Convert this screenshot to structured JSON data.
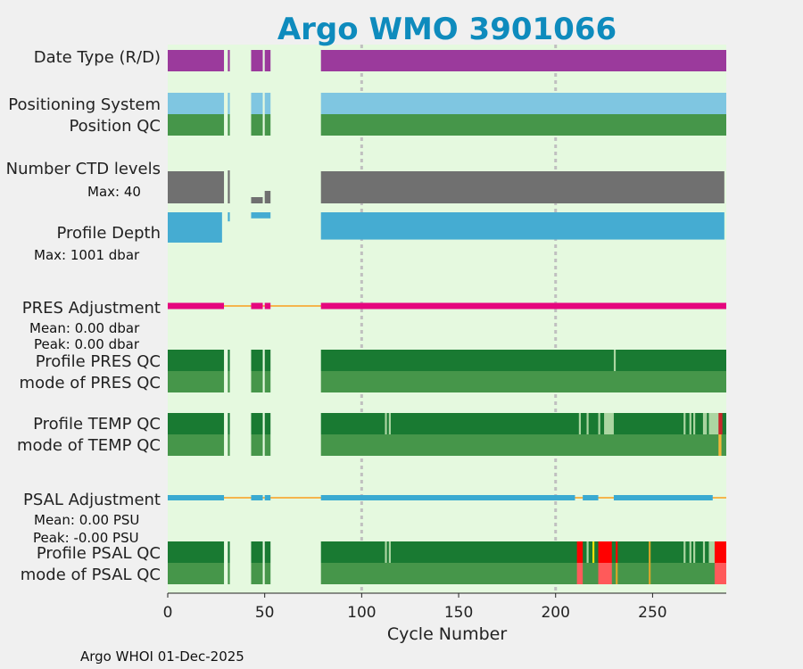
{
  "chart_data": {
    "type": "bar",
    "title": "Argo WMO 3901066",
    "xlabel": "Cycle Number",
    "xlim": [
      0,
      288
    ],
    "xticks": [
      0,
      50,
      100,
      150,
      200,
      250
    ],
    "grid_x": [
      100,
      200
    ],
    "footer": "Argo WHOI 01-Dec-2025",
    "gaps": [
      [
        29,
        31
      ],
      [
        32,
        43
      ],
      [
        49,
        50
      ],
      [
        53,
        79
      ]
    ],
    "ctd_segments": [
      {
        "x": [
          0,
          29
        ],
        "levels": 36
      },
      {
        "x": [
          31,
          32
        ],
        "levels": 37
      },
      {
        "x": [
          43,
          49
        ],
        "levels": 7
      },
      {
        "x": [
          50,
          53
        ],
        "levels": 14
      },
      {
        "x": [
          79,
          287
        ],
        "levels": 36
      }
    ],
    "max_ctd_levels": 40,
    "depth_segments": [
      {
        "x": [
          0,
          28
        ],
        "depth_dbar": 1000
      },
      {
        "x": [
          31,
          32
        ],
        "depth_dbar": 300
      },
      {
        "x": [
          43,
          53
        ],
        "depth_dbar": 200
      },
      {
        "x": [
          79,
          287
        ],
        "depth_dbar": 900
      }
    ],
    "max_depth_dbar": 1001,
    "colors": {
      "plot_bg": "#e5f9df",
      "date_type": "#9b3a9c",
      "positioning": "#7fc6e1",
      "qc_good": "#46964a",
      "qc_dark": "#197a32",
      "qc_probably_good": "#acd6a2",
      "qc_bad": "#ff0000",
      "qc_probably_bad": "#ff5a5a",
      "qc_yellow": "#f2e20c",
      "adjust_line": "#f5b54d",
      "pres_adjust": "#e5077e",
      "psal_adjust": "#3aaad1",
      "ctd_bars": "#707070",
      "depth_bars": "#45acd2",
      "grid": "#c0c0c0"
    },
    "rows": [
      {
        "id": "date-type",
        "label": "Date Type (R/D)",
        "color": "#9b3a9c"
      },
      {
        "id": "positioning-system",
        "label": "Positioning System",
        "color": "#7fc6e1"
      },
      {
        "id": "position-qc",
        "label": "Position QC",
        "color": "#46964a"
      },
      {
        "id": "number-ctd-levels",
        "label": "Number CTD levels",
        "sublabel": "Max: 40"
      },
      {
        "id": "profile-depth",
        "label": "Profile Depth",
        "sublabel": "Max: 1001 dbar"
      },
      {
        "id": "pres-adjustment",
        "label": "PRES Adjustment",
        "mean": "Mean: 0.00 dbar",
        "peak": "Peak: 0.00 dbar",
        "color": "#e5077e"
      },
      {
        "id": "profile-pres-qc",
        "label": "Profile PRES QC",
        "color": "#197a32",
        "marks": [
          {
            "x": 230,
            "w": 1,
            "color": "#acd6a2"
          }
        ]
      },
      {
        "id": "mode-pres-qc",
        "label": "mode of PRES QC",
        "color": "#46964a"
      },
      {
        "id": "profile-temp-qc",
        "label": "Profile TEMP QC",
        "color": "#197a32",
        "marks": [
          {
            "x": 112,
            "w": 1,
            "color": "#acd6a2"
          },
          {
            "x": 114,
            "w": 1,
            "color": "#acd6a2"
          },
          {
            "x": 212,
            "w": 1,
            "color": "#acd6a2"
          },
          {
            "x": 216,
            "w": 1,
            "color": "#acd6a2"
          },
          {
            "x": 222,
            "w": 1,
            "color": "#acd6a2"
          },
          {
            "x": 225,
            "w": 5,
            "color": "#acd6a2"
          },
          {
            "x": 266,
            "w": 1,
            "color": "#acd6a2"
          },
          {
            "x": 269,
            "w": 1,
            "color": "#acd6a2"
          },
          {
            "x": 271,
            "w": 1,
            "color": "#acd6a2"
          },
          {
            "x": 276,
            "w": 1,
            "color": "#acd6a2"
          },
          {
            "x": 277,
            "w": 1,
            "color": "#acd6a2"
          },
          {
            "x": 279,
            "w": 6,
            "color": "#acd6a2"
          },
          {
            "x": 284,
            "w": 2,
            "color": "#c8262b"
          }
        ]
      },
      {
        "id": "mode-temp-qc",
        "label": "mode of TEMP QC",
        "color": "#46964a",
        "marks": [
          {
            "x": 284,
            "w": 1.5,
            "color": "#f5b63a"
          }
        ]
      },
      {
        "id": "psal-adjustment",
        "label": "PSAL Adjustment",
        "mean": "Mean: 0.00 PSU",
        "peak": "Peak: -0.00 PSU",
        "color": "#3aaad1"
      },
      {
        "id": "profile-psal-qc",
        "label": "Profile PSAL QC",
        "color": "#197a32",
        "marks": [
          {
            "x": 112,
            "w": 1,
            "color": "#acd6a2"
          },
          {
            "x": 114,
            "w": 1,
            "color": "#acd6a2"
          },
          {
            "x": 211,
            "w": 3,
            "color": "#ff0000"
          },
          {
            "x": 216,
            "w": 1,
            "color": "#acd6a2"
          },
          {
            "x": 219,
            "w": 1,
            "color": "#f2e20c"
          },
          {
            "x": 222,
            "w": 7,
            "color": "#ff0000"
          },
          {
            "x": 231,
            "w": 1,
            "color": "#ff0000"
          },
          {
            "x": 248,
            "w": 1,
            "color": "#d9a52a"
          },
          {
            "x": 266,
            "w": 1,
            "color": "#acd6a2"
          },
          {
            "x": 269,
            "w": 1,
            "color": "#acd6a2"
          },
          {
            "x": 271,
            "w": 1,
            "color": "#acd6a2"
          },
          {
            "x": 276,
            "w": 1,
            "color": "#acd6a2"
          },
          {
            "x": 279,
            "w": 6,
            "color": "#acd6a2"
          },
          {
            "x": 282,
            "w": 6,
            "color": "#ff0000"
          }
        ]
      },
      {
        "id": "mode-psal-qc",
        "label": "mode of PSAL QC",
        "color": "#46964a",
        "marks": [
          {
            "x": 211,
            "w": 3,
            "color": "#ff5a5a"
          },
          {
            "x": 222,
            "w": 7,
            "color": "#ff5a5a"
          },
          {
            "x": 231,
            "w": 1,
            "color": "#d9a52a"
          },
          {
            "x": 248,
            "w": 1,
            "color": "#d9a52a"
          },
          {
            "x": 282,
            "w": 6,
            "color": "#ff5a5a"
          }
        ]
      }
    ],
    "pres_adjust_breaks": [
      [
        29,
        43
      ],
      [
        49,
        50
      ],
      [
        53,
        79
      ]
    ],
    "psal_adjust_breaks": [
      [
        29,
        43
      ],
      [
        49,
        50
      ],
      [
        53,
        79
      ],
      [
        210,
        214
      ],
      [
        222,
        230
      ],
      [
        281,
        288
      ]
    ]
  }
}
